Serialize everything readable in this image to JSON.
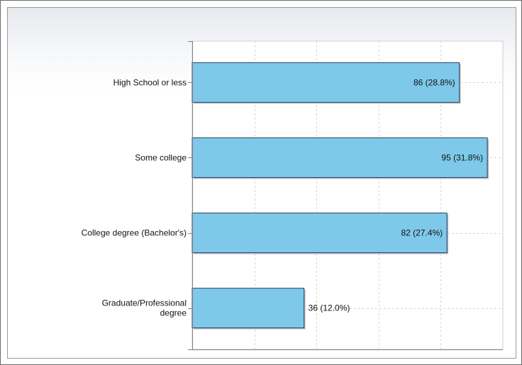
{
  "chart_data": {
    "type": "bar",
    "orientation": "horizontal",
    "title": "",
    "xlabel": "",
    "ylabel": "",
    "categories": [
      [
        "High School or less"
      ],
      [
        "Some college"
      ],
      [
        "College degree (Bachelor's)"
      ],
      [
        "Graduate/Professional",
        "degree"
      ]
    ],
    "values": [
      86,
      95,
      82,
      36
    ],
    "labels": [
      "86 (28.8%)",
      "95 (31.8%)",
      "82 (27.4%)",
      "36 (12.0%)"
    ],
    "xlim": [
      0,
      100
    ],
    "grid": true,
    "legend": false,
    "colors": {
      "bar": "#7ec9ea",
      "bar_border": "#2c3f63",
      "grid": "#d6d6d6",
      "axis": "#808080"
    }
  }
}
